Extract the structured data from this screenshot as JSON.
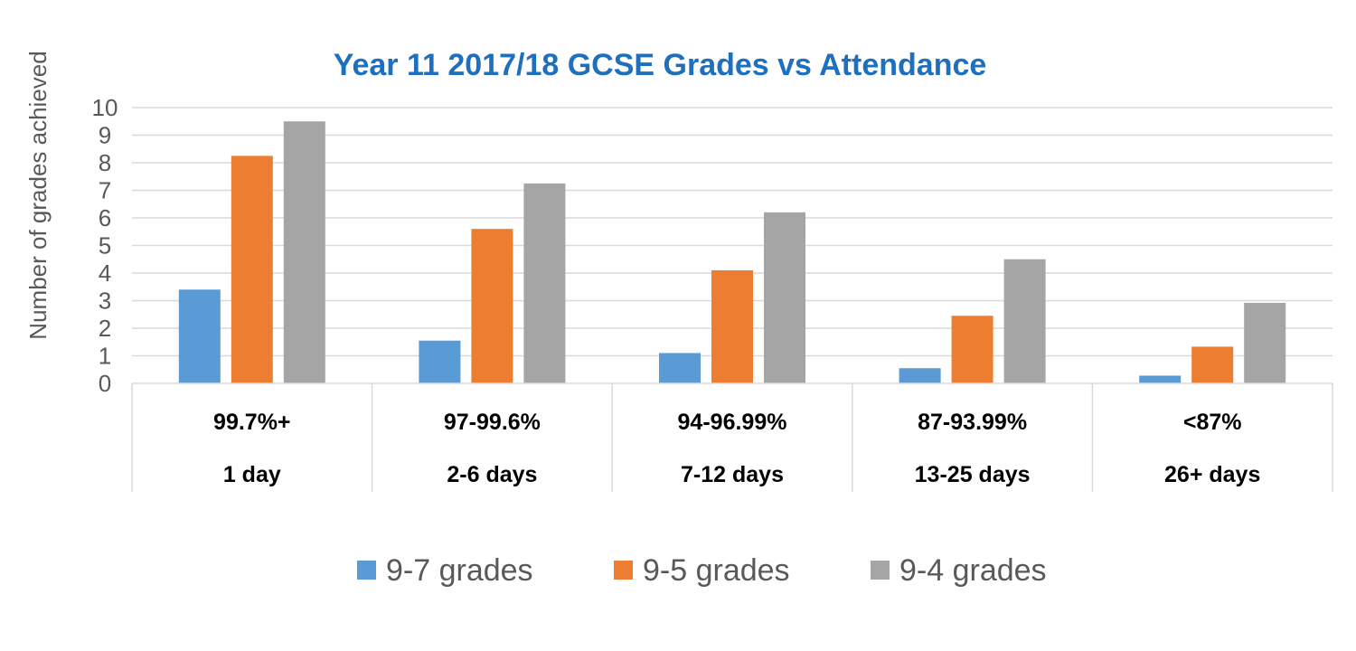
{
  "chart_data": {
    "type": "bar",
    "title": "Year 11 2017/18  GCSE Grades vs Attendance",
    "ylabel": "Number of grades achieved",
    "xlabel": "",
    "ylim": [
      0,
      10
    ],
    "yticks": [
      0,
      1,
      2,
      3,
      4,
      5,
      6,
      7,
      8,
      9,
      10
    ],
    "grid": true,
    "legend_position": "bottom",
    "categories": [
      {
        "line1": "99.7%+",
        "line2": "1 day"
      },
      {
        "line1": "97-99.6%",
        "line2": "2-6 days"
      },
      {
        "line1": "94-96.99%",
        "line2": "7-12 days"
      },
      {
        "line1": "87-93.99%",
        "line2": "13-25 days"
      },
      {
        "line1": "<87%",
        "line2": "26+ days"
      }
    ],
    "series": [
      {
        "name": "9-7 grades",
        "color": "#5B9BD5",
        "values": [
          3.4,
          1.55,
          1.1,
          0.55,
          0.28
        ]
      },
      {
        "name": "9-5 grades",
        "color": "#ED7D31",
        "values": [
          8.25,
          5.6,
          4.1,
          2.45,
          1.33
        ]
      },
      {
        "name": "9-4 grades",
        "color": "#A5A5A5",
        "values": [
          9.5,
          7.25,
          6.2,
          4.5,
          2.92
        ]
      }
    ],
    "colors": {
      "title": "#1F6FBF",
      "grid": "#D9D9D9",
      "axis_text": "#595959",
      "category_text": "#000000"
    }
  }
}
